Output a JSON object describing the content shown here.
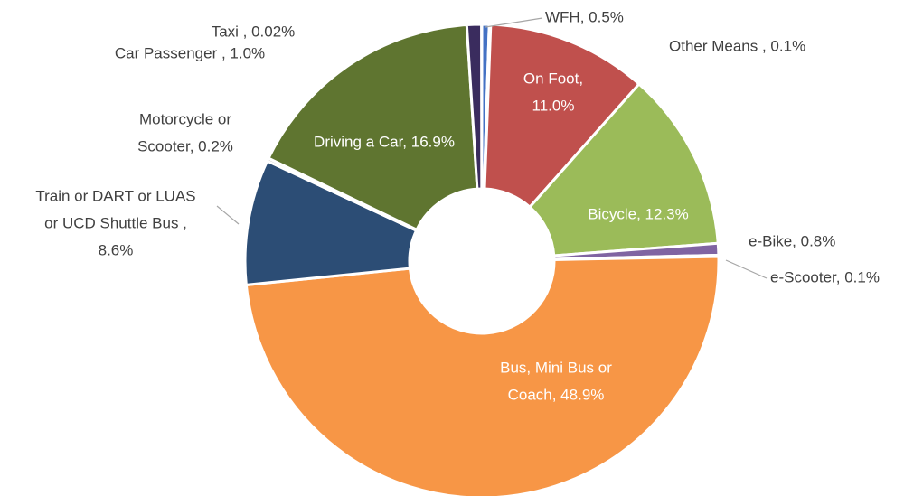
{
  "chart_data": {
    "type": "donut",
    "categories": [
      "WFH",
      "Other Means",
      "On Foot",
      "Bicycle",
      "e-Bike",
      "e-Scooter",
      "Bus, Mini Bus or Coach",
      "Train or DART or LUAS or UCD Shuttle Bus",
      "Motorcycle or Scooter",
      "Driving a Car",
      "Car Passenger",
      "Taxi"
    ],
    "labels": [
      [
        "WFH, 0.5%"
      ],
      [
        "Other Means , 0.1%"
      ],
      [
        "On Foot,",
        "11.0%"
      ],
      [
        "Bicycle, 12.3%"
      ],
      [
        "e-Bike, 0.8%"
      ],
      [
        "e-Scooter, 0.1%"
      ],
      [
        "Bus, Mini Bus or",
        "Coach, 48.9%"
      ],
      [
        "Train or DART or LUAS",
        "or UCD Shuttle Bus ,",
        "8.6%"
      ],
      [
        "Motorcycle or",
        "Scooter, 0.2%"
      ],
      [
        "Driving a Car, 16.9%"
      ],
      [
        "Car Passenger , 1.0%"
      ],
      [
        "Taxi , 0.02%"
      ]
    ],
    "values": [
      0.5,
      0.1,
      11.0,
      12.3,
      0.8,
      0.1,
      48.9,
      8.6,
      0.2,
      16.9,
      1.0,
      0.02
    ],
    "colors": [
      "#4472c4",
      "#a5a5a5",
      "#c0504d",
      "#9bbb59",
      "#8064a2",
      "#4bacc6",
      "#f79646",
      "#2c4d75",
      "#7f7f7f",
      "#5f7530",
      "#3a2c5e",
      "#772c2a"
    ]
  }
}
